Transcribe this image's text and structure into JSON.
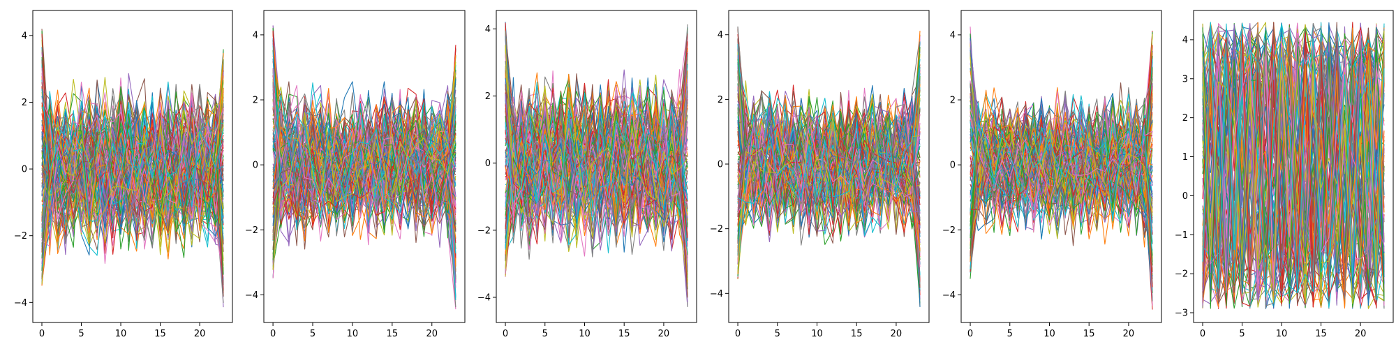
{
  "figure": {
    "palette": [
      "#1f77b4",
      "#ff7f0e",
      "#2ca02c",
      "#d62728",
      "#9467bd",
      "#8c564b",
      "#e377c2",
      "#7f7f7f",
      "#bcbd22",
      "#17becf"
    ]
  },
  "chart_data": [
    {
      "type": "line",
      "title": "",
      "xlabel": "",
      "ylabel": "",
      "xlim": [
        -1.15,
        24.15
      ],
      "ylim": [
        -4.6,
        4.75
      ],
      "xticks": [
        0,
        5,
        10,
        15,
        20
      ],
      "yticks": [
        -4,
        -2,
        0,
        2,
        4
      ],
      "grid": false,
      "series_summary": {
        "n_points": 24,
        "n_series": 150,
        "start_range": [
          -3.6,
          4.3
        ],
        "end_range": [
          -4.2,
          3.75
        ],
        "middle_range": [
          -3.2,
          3.1
        ]
      }
    },
    {
      "type": "line",
      "title": "",
      "xlabel": "",
      "ylabel": "",
      "xlim": [
        -1.15,
        24.15
      ],
      "ylim": [
        -4.85,
        4.75
      ],
      "xticks": [
        0,
        5,
        10,
        15,
        20
      ],
      "yticks": [
        -4,
        -2,
        0,
        2,
        4
      ],
      "grid": false,
      "series_summary": {
        "n_points": 24,
        "n_series": 150,
        "start_range": [
          -3.5,
          4.35
        ],
        "end_range": [
          -4.5,
          3.9
        ],
        "middle_range": [
          -3.0,
          2.8
        ]
      }
    },
    {
      "type": "line",
      "title": "",
      "xlabel": "",
      "ylabel": "",
      "xlim": [
        -1.15,
        24.15
      ],
      "ylim": [
        -4.75,
        4.55
      ],
      "xticks": [
        0,
        5,
        10,
        15,
        20
      ],
      "yticks": [
        -4,
        -2,
        0,
        2,
        4
      ],
      "grid": false,
      "series_summary": {
        "n_points": 24,
        "n_series": 150,
        "start_range": [
          -3.5,
          4.25
        ],
        "end_range": [
          -4.3,
          4.2
        ],
        "middle_range": [
          -3.2,
          3.1
        ]
      }
    },
    {
      "type": "line",
      "title": "",
      "xlabel": "",
      "ylabel": "",
      "xlim": [
        -1.15,
        24.15
      ],
      "ylim": [
        -4.9,
        4.75
      ],
      "xticks": [
        0,
        5,
        10,
        15,
        20
      ],
      "yticks": [
        -4,
        -2,
        0,
        2,
        4
      ],
      "grid": false,
      "series_summary": {
        "n_points": 24,
        "n_series": 150,
        "start_range": [
          -3.6,
          4.3
        ],
        "end_range": [
          -4.45,
          4.15
        ],
        "middle_range": [
          -2.9,
          2.8
        ]
      }
    },
    {
      "type": "line",
      "title": "",
      "xlabel": "",
      "ylabel": "",
      "xlim": [
        -1.15,
        24.15
      ],
      "ylim": [
        -4.85,
        4.75
      ],
      "xticks": [
        0,
        5,
        10,
        15,
        20
      ],
      "yticks": [
        -4,
        -2,
        0,
        2,
        4
      ],
      "grid": false,
      "series_summary": {
        "n_points": 24,
        "n_series": 150,
        "start_range": [
          -3.6,
          4.3
        ],
        "end_range": [
          -4.5,
          4.15
        ],
        "middle_range": [
          -2.8,
          2.7
        ]
      }
    },
    {
      "type": "line",
      "title": "",
      "xlabel": "",
      "ylabel": "",
      "xlim": [
        -1.15,
        24.15
      ],
      "ylim": [
        -3.25,
        4.75
      ],
      "xticks": [
        0,
        5,
        10,
        15,
        20
      ],
      "yticks": [
        -3,
        -2,
        -1,
        0,
        1,
        2,
        3,
        4
      ],
      "grid": false,
      "series_summary": {
        "n_points": 24,
        "n_series": 150,
        "start_range": [
          -2.8,
          4.45
        ],
        "end_range": [
          -2.7,
          4.55
        ],
        "middle_range": [
          -2.9,
          4.45
        ],
        "oscillating": true
      }
    }
  ]
}
